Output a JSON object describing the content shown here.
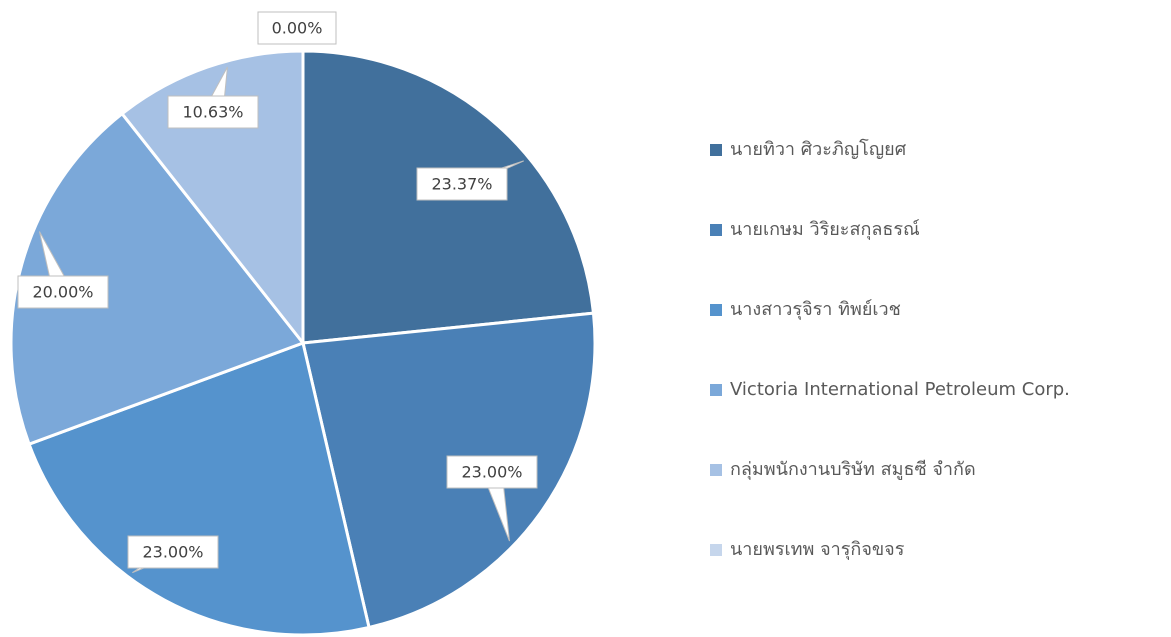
{
  "chart_data": {
    "type": "pie",
    "categories": [
      "นายทิวา ศิวะภิญโญยศ",
      "นายเกษม วิริยะสกุลธรณ์",
      "นางสาวรุจิรา ทิพย์เวช",
      "Victoria International Petroleum Corp.",
      "กลุ่มพนักงานบริษัท สมูธซี จำกัด",
      "นายพรเทพ จารุกิจขจร"
    ],
    "values": [
      23.37,
      23.0,
      23.0,
      20.0,
      10.63,
      0.0
    ],
    "value_labels": [
      "23.37%",
      "23.00%",
      "23.00%",
      "20.00%",
      "10.63%",
      "0.00%"
    ],
    "colors": [
      "#41709c",
      "#4a80b6",
      "#5593cd",
      "#7ba8d9",
      "#a6c1e4",
      "#c6d6ec"
    ],
    "legend": "right"
  }
}
